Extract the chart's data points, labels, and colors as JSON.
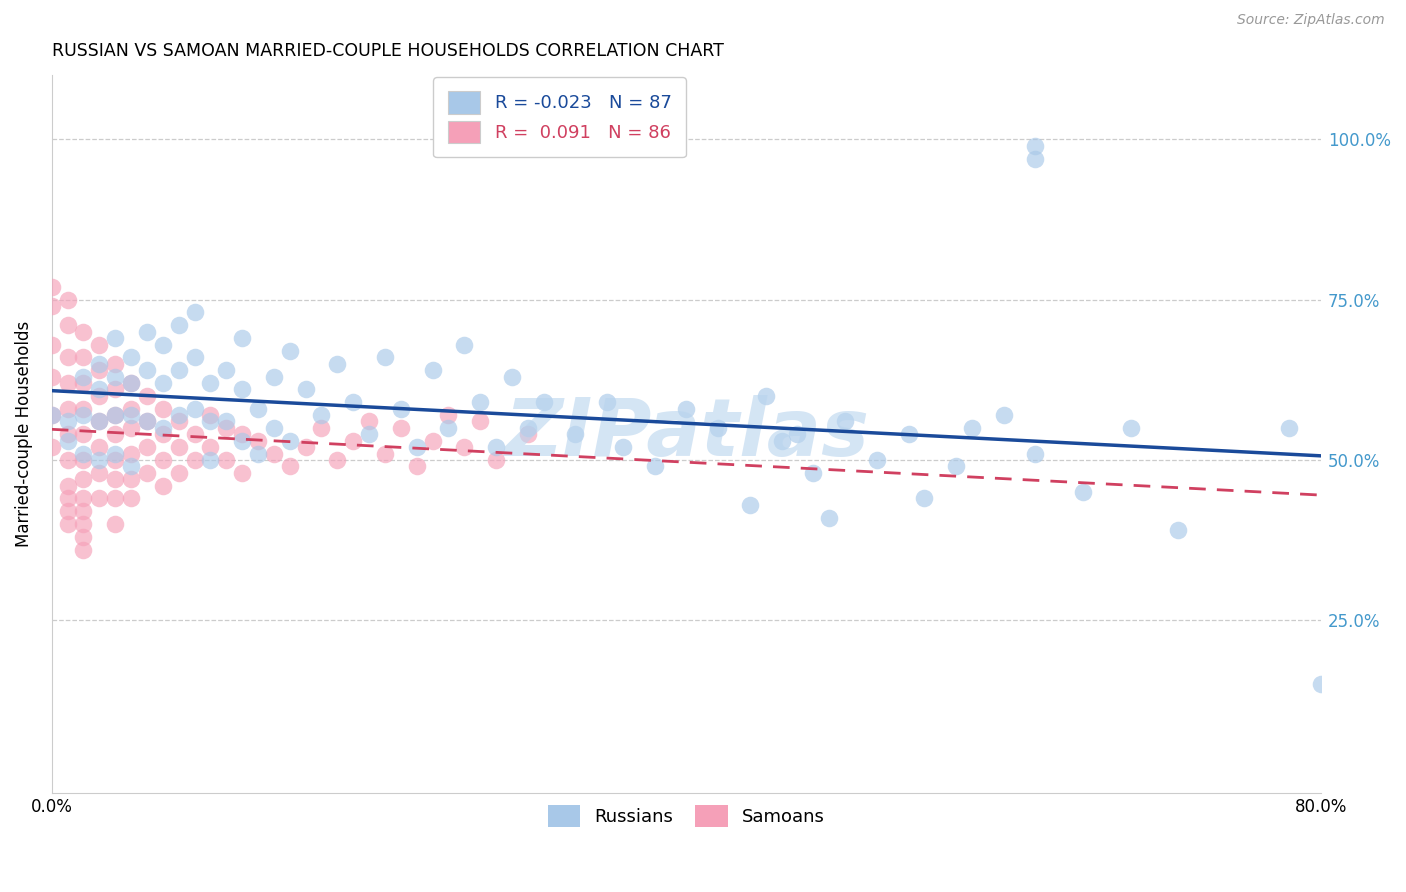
{
  "title": "RUSSIAN VS SAMOAN MARRIED-COUPLE HOUSEHOLDS CORRELATION CHART",
  "source": "Source: ZipAtlas.com",
  "ylabel": "Married-couple Households",
  "russians_label": "Russians",
  "samoans_label": "Samoans",
  "russian_color": "#a8c8e8",
  "samoan_color": "#f5a0b8",
  "russian_line_color": "#1a4a9a",
  "samoan_line_color": "#d04060",
  "watermark_color": "#b8d4ee",
  "right_axis_color": "#4499cc",
  "R_russian": -0.023,
  "N_russian": 87,
  "R_samoan": 0.091,
  "N_samoan": 86,
  "xlim": [
    0.0,
    0.8
  ],
  "ylim": [
    -0.02,
    1.1
  ],
  "yticks": [
    0.25,
    0.5,
    0.75,
    1.0
  ],
  "ytick_labels": [
    "25.0%",
    "50.0%",
    "75.0%",
    "100.0%"
  ],
  "xtick_left": "0.0%",
  "xtick_right": "80.0%",
  "marker_size": 160,
  "marker_alpha": 0.65,
  "legend_R_russian": "R = -0.023   N = 87",
  "legend_R_samoan": "R =  0.091   N = 86",
  "russian_x": [
    0.62,
    0.62,
    0.0,
    0.01,
    0.01,
    0.02,
    0.02,
    0.02,
    0.03,
    0.03,
    0.03,
    0.03,
    0.04,
    0.04,
    0.04,
    0.04,
    0.05,
    0.05,
    0.05,
    0.05,
    0.06,
    0.06,
    0.06,
    0.07,
    0.07,
    0.07,
    0.08,
    0.08,
    0.08,
    0.09,
    0.09,
    0.09,
    0.1,
    0.1,
    0.1,
    0.11,
    0.11,
    0.12,
    0.12,
    0.12,
    0.13,
    0.13,
    0.14,
    0.14,
    0.15,
    0.15,
    0.16,
    0.17,
    0.18,
    0.19,
    0.2,
    0.21,
    0.22,
    0.23,
    0.24,
    0.25,
    0.26,
    0.27,
    0.28,
    0.29,
    0.3,
    0.31,
    0.33,
    0.35,
    0.36,
    0.38,
    0.4,
    0.42,
    0.44,
    0.45,
    0.46,
    0.47,
    0.48,
    0.49,
    0.5,
    0.52,
    0.54,
    0.55,
    0.57,
    0.58,
    0.6,
    0.62,
    0.65,
    0.68,
    0.71,
    0.78,
    0.8
  ],
  "russian_y": [
    0.99,
    0.97,
    0.57,
    0.56,
    0.53,
    0.63,
    0.57,
    0.51,
    0.65,
    0.61,
    0.56,
    0.5,
    0.69,
    0.63,
    0.57,
    0.51,
    0.66,
    0.62,
    0.57,
    0.49,
    0.7,
    0.64,
    0.56,
    0.68,
    0.62,
    0.55,
    0.71,
    0.64,
    0.57,
    0.73,
    0.66,
    0.58,
    0.62,
    0.56,
    0.5,
    0.64,
    0.56,
    0.69,
    0.61,
    0.53,
    0.58,
    0.51,
    0.63,
    0.55,
    0.67,
    0.53,
    0.61,
    0.57,
    0.65,
    0.59,
    0.54,
    0.66,
    0.58,
    0.52,
    0.64,
    0.55,
    0.68,
    0.59,
    0.52,
    0.63,
    0.55,
    0.59,
    0.54,
    0.59,
    0.52,
    0.49,
    0.58,
    0.55,
    0.43,
    0.6,
    0.53,
    0.54,
    0.48,
    0.41,
    0.56,
    0.5,
    0.54,
    0.44,
    0.49,
    0.55,
    0.57,
    0.51,
    0.45,
    0.55,
    0.39,
    0.55,
    0.15
  ],
  "samoan_x": [
    0.0,
    0.0,
    0.0,
    0.0,
    0.0,
    0.0,
    0.01,
    0.01,
    0.01,
    0.01,
    0.01,
    0.01,
    0.01,
    0.01,
    0.01,
    0.01,
    0.01,
    0.02,
    0.02,
    0.02,
    0.02,
    0.02,
    0.02,
    0.02,
    0.02,
    0.02,
    0.02,
    0.02,
    0.02,
    0.03,
    0.03,
    0.03,
    0.03,
    0.03,
    0.03,
    0.03,
    0.04,
    0.04,
    0.04,
    0.04,
    0.04,
    0.04,
    0.04,
    0.04,
    0.05,
    0.05,
    0.05,
    0.05,
    0.05,
    0.05,
    0.06,
    0.06,
    0.06,
    0.06,
    0.07,
    0.07,
    0.07,
    0.07,
    0.08,
    0.08,
    0.08,
    0.09,
    0.09,
    0.1,
    0.1,
    0.11,
    0.11,
    0.12,
    0.12,
    0.13,
    0.14,
    0.15,
    0.16,
    0.17,
    0.18,
    0.19,
    0.2,
    0.21,
    0.22,
    0.23,
    0.24,
    0.25,
    0.26,
    0.27,
    0.28,
    0.3
  ],
  "samoan_y": [
    0.77,
    0.74,
    0.68,
    0.63,
    0.57,
    0.52,
    0.75,
    0.71,
    0.66,
    0.62,
    0.58,
    0.54,
    0.5,
    0.46,
    0.44,
    0.42,
    0.4,
    0.7,
    0.66,
    0.62,
    0.58,
    0.54,
    0.5,
    0.47,
    0.44,
    0.42,
    0.4,
    0.38,
    0.36,
    0.68,
    0.64,
    0.6,
    0.56,
    0.52,
    0.48,
    0.44,
    0.65,
    0.61,
    0.57,
    0.54,
    0.5,
    0.47,
    0.44,
    0.4,
    0.62,
    0.58,
    0.55,
    0.51,
    0.47,
    0.44,
    0.6,
    0.56,
    0.52,
    0.48,
    0.58,
    0.54,
    0.5,
    0.46,
    0.56,
    0.52,
    0.48,
    0.54,
    0.5,
    0.57,
    0.52,
    0.55,
    0.5,
    0.54,
    0.48,
    0.53,
    0.51,
    0.49,
    0.52,
    0.55,
    0.5,
    0.53,
    0.56,
    0.51,
    0.55,
    0.49,
    0.53,
    0.57,
    0.52,
    0.56,
    0.5,
    0.54
  ]
}
